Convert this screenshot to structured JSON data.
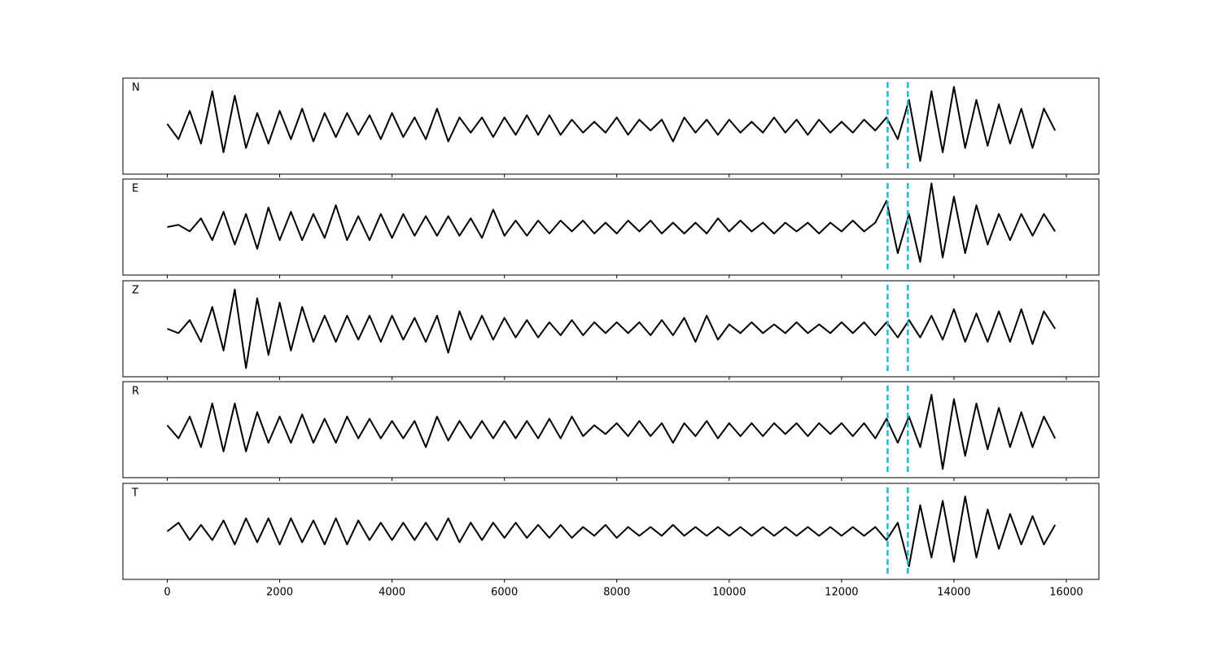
{
  "chart_data": {
    "type": "line",
    "x": [
      0,
      200,
      400,
      600,
      800,
      1000,
      1200,
      1400,
      1600,
      1800,
      2000,
      2200,
      2400,
      2600,
      2800,
      3000,
      3200,
      3400,
      3600,
      3800,
      4000,
      4200,
      4400,
      4600,
      4800,
      5000,
      5200,
      5400,
      5600,
      5800,
      6000,
      6200,
      6400,
      6600,
      6800,
      7000,
      7200,
      7400,
      7600,
      7800,
      8000,
      8200,
      8400,
      8600,
      8800,
      9000,
      9200,
      9400,
      9600,
      9800,
      10000,
      10200,
      10400,
      10600,
      10800,
      11000,
      11200,
      11400,
      11600,
      11800,
      12000,
      12200,
      12400,
      12600,
      12800,
      13000,
      13200,
      13400,
      13600,
      13800,
      14000,
      14200,
      14400,
      14600,
      14800,
      15000,
      15200,
      15400,
      15600,
      15800
    ],
    "xlim": [
      -790,
      16580
    ],
    "xticks": [
      0,
      2000,
      4000,
      6000,
      8000,
      10000,
      12000,
      14000,
      16000
    ],
    "ylim": [
      -1.1,
      1.1
    ],
    "vlines": {
      "values": [
        12820,
        13180
      ],
      "color": "#17becf"
    },
    "series": [
      {
        "name": "N",
        "color": "#000000",
        "values": [
          0.05,
          -0.3,
          0.35,
          -0.4,
          0.8,
          -0.6,
          0.7,
          -0.5,
          0.3,
          -0.4,
          0.35,
          -0.3,
          0.4,
          -0.35,
          0.3,
          -0.25,
          0.3,
          -0.2,
          0.25,
          -0.3,
          0.3,
          -0.25,
          0.2,
          -0.3,
          0.4,
          -0.35,
          0.2,
          -0.15,
          0.2,
          -0.25,
          0.2,
          -0.2,
          0.25,
          -0.2,
          0.25,
          -0.2,
          0.15,
          -0.15,
          0.1,
          -0.15,
          0.2,
          -0.2,
          0.15,
          -0.1,
          0.15,
          -0.35,
          0.2,
          -0.15,
          0.15,
          -0.2,
          0.15,
          -0.15,
          0.1,
          -0.15,
          0.2,
          -0.15,
          0.15,
          -0.2,
          0.15,
          -0.15,
          0.1,
          -0.15,
          0.15,
          -0.1,
          0.2,
          -0.3,
          0.6,
          -0.8,
          0.8,
          -0.6,
          0.9,
          -0.5,
          0.6,
          -0.45,
          0.5,
          -0.4,
          0.4,
          -0.5,
          0.4,
          -0.1
        ]
      },
      {
        "name": "E",
        "color": "#000000",
        "values": [
          0,
          0.05,
          -0.1,
          0.2,
          -0.3,
          0.35,
          -0.4,
          0.3,
          -0.5,
          0.45,
          -0.3,
          0.35,
          -0.3,
          0.3,
          -0.25,
          0.5,
          -0.3,
          0.25,
          -0.3,
          0.3,
          -0.25,
          0.3,
          -0.2,
          0.25,
          -0.2,
          0.25,
          -0.2,
          0.2,
          -0.25,
          0.4,
          -0.2,
          0.15,
          -0.2,
          0.15,
          -0.15,
          0.15,
          -0.1,
          0.15,
          -0.15,
          0.1,
          -0.15,
          0.15,
          -0.1,
          0.15,
          -0.15,
          0.1,
          -0.15,
          0.1,
          -0.15,
          0.2,
          -0.1,
          0.15,
          -0.1,
          0.1,
          -0.15,
          0.1,
          -0.1,
          0.1,
          -0.15,
          0.1,
          -0.1,
          0.15,
          -0.1,
          0.1,
          0.6,
          -0.6,
          0.3,
          -0.8,
          1.0,
          -0.7,
          0.7,
          -0.6,
          0.5,
          -0.4,
          0.3,
          -0.3,
          0.3,
          -0.2,
          0.3,
          -0.1
        ]
      },
      {
        "name": "Z",
        "color": "#000000",
        "values": [
          0,
          -0.1,
          0.2,
          -0.3,
          0.5,
          -0.5,
          0.9,
          -0.9,
          0.7,
          -0.6,
          0.6,
          -0.5,
          0.5,
          -0.3,
          0.3,
          -0.3,
          0.3,
          -0.25,
          0.3,
          -0.3,
          0.3,
          -0.25,
          0.25,
          -0.3,
          0.3,
          -0.55,
          0.4,
          -0.25,
          0.3,
          -0.25,
          0.25,
          -0.2,
          0.2,
          -0.2,
          0.15,
          -0.15,
          0.2,
          -0.15,
          0.15,
          -0.1,
          0.15,
          -0.1,
          0.15,
          -0.15,
          0.2,
          -0.15,
          0.25,
          -0.3,
          0.3,
          -0.25,
          0.1,
          -0.1,
          0.15,
          -0.1,
          0.1,
          -0.1,
          0.15,
          -0.1,
          0.1,
          -0.1,
          0.15,
          -0.1,
          0.15,
          -0.15,
          0.15,
          -0.2,
          0.2,
          -0.2,
          0.3,
          -0.25,
          0.45,
          -0.3,
          0.35,
          -0.3,
          0.4,
          -0.3,
          0.45,
          -0.35,
          0.4,
          0
        ]
      },
      {
        "name": "R",
        "color": "#000000",
        "values": [
          0.1,
          -0.2,
          0.3,
          -0.4,
          0.6,
          -0.5,
          0.6,
          -0.5,
          0.4,
          -0.3,
          0.3,
          -0.3,
          0.35,
          -0.3,
          0.25,
          -0.3,
          0.3,
          -0.2,
          0.25,
          -0.2,
          0.2,
          -0.2,
          0.2,
          -0.4,
          0.3,
          -0.25,
          0.2,
          -0.2,
          0.2,
          -0.2,
          0.2,
          -0.2,
          0.2,
          -0.2,
          0.25,
          -0.2,
          0.3,
          -0.15,
          0.1,
          -0.1,
          0.15,
          -0.15,
          0.2,
          -0.15,
          0.15,
          -0.3,
          0.15,
          -0.15,
          0.2,
          -0.2,
          0.15,
          -0.15,
          0.15,
          -0.15,
          0.15,
          -0.1,
          0.15,
          -0.15,
          0.15,
          -0.1,
          0.15,
          -0.15,
          0.15,
          -0.2,
          0.25,
          -0.3,
          0.3,
          -0.4,
          0.8,
          -0.9,
          0.7,
          -0.6,
          0.6,
          -0.45,
          0.5,
          -0.4,
          0.4,
          -0.4,
          0.3,
          -0.2
        ]
      },
      {
        "name": "T",
        "color": "#000000",
        "values": [
          0,
          0.2,
          -0.2,
          0.15,
          -0.2,
          0.25,
          -0.3,
          0.3,
          -0.25,
          0.3,
          -0.3,
          0.3,
          -0.25,
          0.25,
          -0.3,
          0.3,
          -0.3,
          0.25,
          -0.2,
          0.2,
          -0.2,
          0.2,
          -0.2,
          0.2,
          -0.2,
          0.3,
          -0.25,
          0.2,
          -0.2,
          0.2,
          -0.15,
          0.2,
          -0.15,
          0.15,
          -0.15,
          0.15,
          -0.15,
          0.1,
          -0.1,
          0.15,
          -0.15,
          0.1,
          -0.1,
          0.1,
          -0.1,
          0.15,
          -0.1,
          0.1,
          -0.1,
          0.1,
          -0.1,
          0.1,
          -0.1,
          0.1,
          -0.1,
          0.1,
          -0.1,
          0.1,
          -0.1,
          0.1,
          -0.1,
          0.1,
          -0.1,
          0.1,
          -0.2,
          0.2,
          -0.8,
          0.6,
          -0.6,
          0.7,
          -0.7,
          0.8,
          -0.6,
          0.5,
          -0.4,
          0.4,
          -0.3,
          0.35,
          -0.3,
          0.15
        ]
      }
    ]
  }
}
